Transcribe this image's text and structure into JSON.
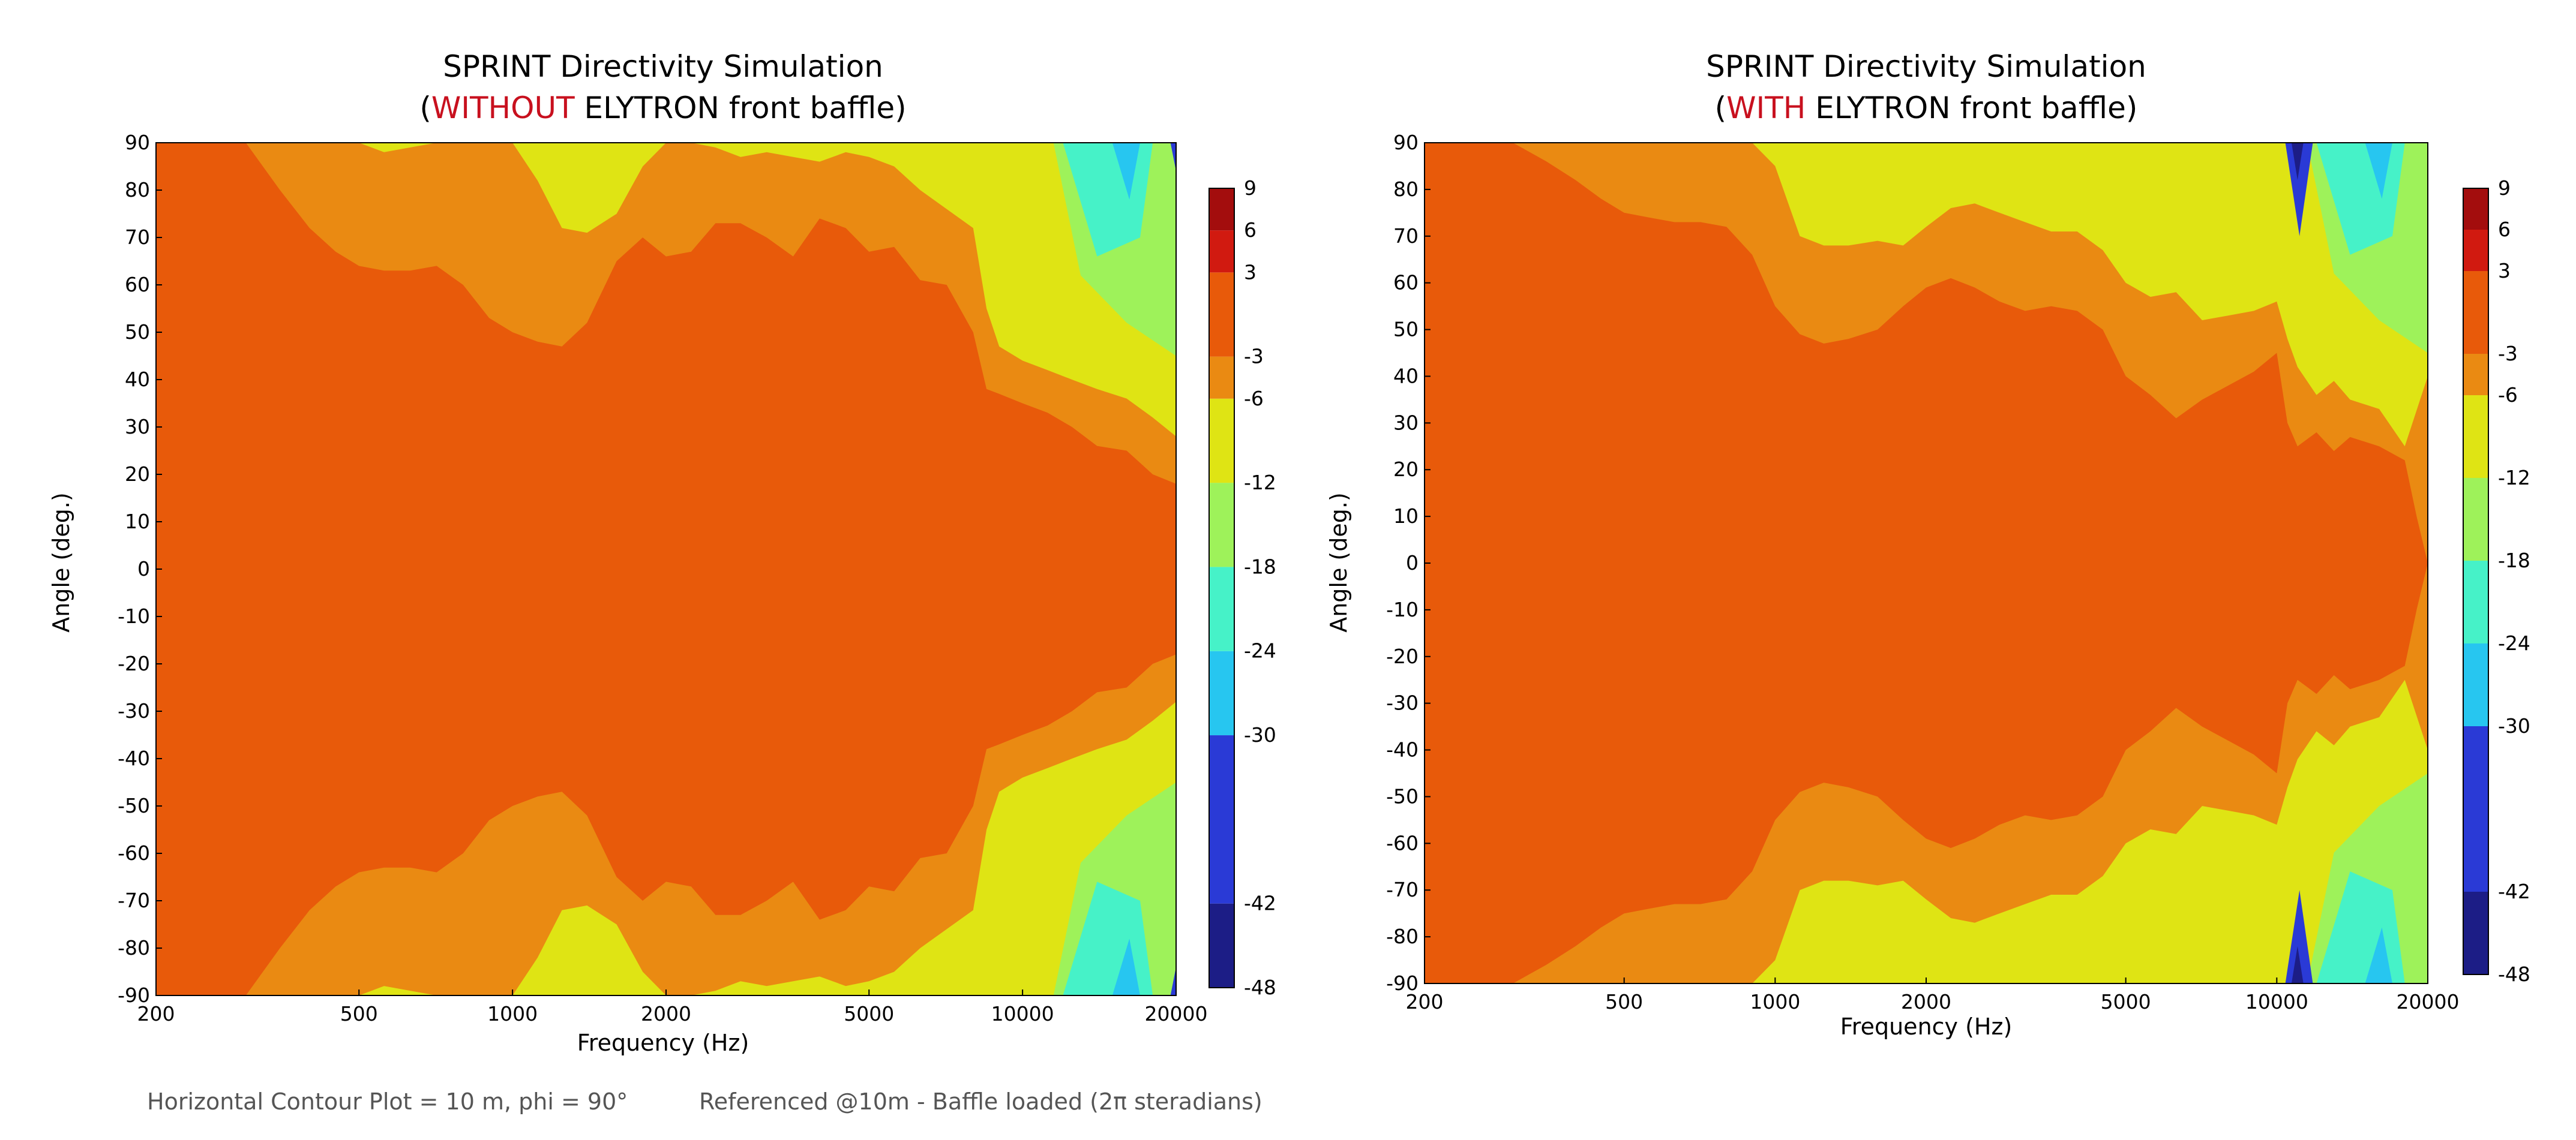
{
  "footer": {
    "left": "Horizontal Contour Plot = 10 m, phi = 90°",
    "right": "Referenced @10m - Baffle loaded (2π steradians)"
  },
  "colors": {
    "dark_red": "#a30d0d",
    "red": "#d11a10",
    "orange": "#e85a0a",
    "light_orange": "#ea8a12",
    "yellow": "#dfe414",
    "light_green": "#9ef25a",
    "aqua": "#46f2c8",
    "light_blue": "#27c6f0",
    "blue": "#2a3ad6",
    "navy": "#1c1d86"
  },
  "chart_data": [
    {
      "type": "heatmap",
      "title_line1": "SPRINT Directivity Simulation",
      "title_line2": {
        "open": "(",
        "highlight": "WITHOUT",
        "rest": " ELYTRON front baffle)"
      },
      "xlabel": "Frequency (Hz)",
      "ylabel": "Angle (deg.)",
      "xscale": "log",
      "xlim": [
        200,
        20000
      ],
      "ylim": [
        -90,
        90
      ],
      "xticks": [
        "200",
        "500",
        "1000",
        "2000",
        "5000",
        "10000",
        "20000"
      ],
      "xtick_values": [
        200,
        500,
        1000,
        2000,
        5000,
        10000,
        20000
      ],
      "yticks": [
        "90",
        "80",
        "70",
        "60",
        "50",
        "40",
        "30",
        "20",
        "10",
        "0",
        "-10",
        "-20",
        "-30",
        "-40",
        "-50",
        "-60",
        "-70",
        "-80",
        "-90"
      ],
      "ytick_values": [
        90,
        80,
        70,
        60,
        50,
        40,
        30,
        20,
        10,
        0,
        -10,
        -20,
        -30,
        -40,
        -50,
        -60,
        -70,
        -80,
        -90
      ],
      "colorbar_levels": [
        -48,
        -42,
        -30,
        -24,
        -18,
        -12,
        -6,
        -3,
        3,
        6,
        9
      ],
      "colorbar_labels": [
        "9",
        "6",
        "3",
        "-3",
        "-6",
        "-12",
        "-18",
        "-24",
        "-30",
        "-42",
        "-48"
      ],
      "contours": [
        {
          "level": "-3 dB",
          "freq": [
            200,
            250,
            300,
            350,
            400,
            450,
            500,
            560,
            630,
            710,
            800,
            900,
            1000,
            1120,
            1250,
            1400,
            1600,
            1800,
            2000,
            2240,
            2500,
            2800,
            3150,
            3550,
            4000,
            4500,
            5000,
            5600,
            6300,
            7100,
            8000,
            8500,
            9000,
            10000,
            11200,
            12500,
            14000,
            16000,
            18000,
            20000
          ],
          "angle": [
            90,
            90,
            90,
            80,
            72,
            67,
            64,
            63,
            63,
            64,
            60,
            53,
            50,
            48,
            47,
            52,
            65,
            70,
            66,
            67,
            73,
            73,
            70,
            66,
            74,
            72,
            67,
            68,
            61,
            60,
            50,
            38,
            37,
            35,
            33,
            30,
            26,
            25,
            20,
            18
          ]
        },
        {
          "level": "-6 dB",
          "freq": [
            200,
            400,
            450,
            500,
            560,
            630,
            710,
            800,
            900,
            1000,
            1120,
            1250,
            1400,
            1600,
            1800,
            2000,
            2240,
            2500,
            2800,
            3150,
            3550,
            4000,
            4500,
            5000,
            5600,
            6300,
            7100,
            8000,
            8500,
            9000,
            10000,
            11200,
            12500,
            14000,
            16000,
            18000,
            20000
          ],
          "angle": [
            90,
            90,
            90,
            90,
            88,
            89,
            90,
            90,
            90,
            90,
            82,
            72,
            71,
            75,
            85,
            90,
            90,
            89,
            87,
            88,
            87,
            86,
            88,
            87,
            85,
            80,
            76,
            72,
            55,
            47,
            44,
            42,
            40,
            38,
            36,
            32,
            28
          ]
        }
      ]
    },
    {
      "type": "heatmap",
      "title_line1": "SPRINT Directivity Simulation",
      "title_line2": {
        "open": "(",
        "highlight": "WITH",
        "rest": " ELYTRON front baffle)"
      },
      "xlabel": "Frequency (Hz)",
      "ylabel": "Angle (deg.)",
      "xscale": "log",
      "xlim": [
        200,
        20000
      ],
      "ylim": [
        -90,
        90
      ],
      "xticks": [
        "200",
        "500",
        "1000",
        "2000",
        "5000",
        "10000",
        "20000"
      ],
      "xtick_values": [
        200,
        500,
        1000,
        2000,
        5000,
        10000,
        20000
      ],
      "yticks": [
        "90",
        "80",
        "70",
        "60",
        "50",
        "40",
        "30",
        "20",
        "10",
        "0",
        "-10",
        "-20",
        "-30",
        "-40",
        "-50",
        "-60",
        "-70",
        "-80",
        "-90"
      ],
      "ytick_values": [
        90,
        80,
        70,
        60,
        50,
        40,
        30,
        20,
        10,
        0,
        -10,
        -20,
        -30,
        -40,
        -50,
        -60,
        -70,
        -80,
        -90
      ],
      "colorbar_levels": [
        -48,
        -42,
        -30,
        -24,
        -18,
        -12,
        -6,
        -3,
        3,
        6,
        9
      ],
      "colorbar_labels": [
        "9",
        "6",
        "3",
        "-3",
        "-6",
        "-12",
        "-18",
        "-24",
        "-30",
        "-42",
        "-48"
      ],
      "contours": [
        {
          "level": "-3 dB",
          "freq": [
            200,
            300,
            350,
            400,
            450,
            500,
            560,
            630,
            710,
            800,
            900,
            1000,
            1120,
            1250,
            1400,
            1600,
            1800,
            2000,
            2240,
            2500,
            2800,
            3150,
            3550,
            4000,
            4500,
            5000,
            5600,
            6300,
            7100,
            8000,
            9000,
            10000,
            10500,
            11000,
            12000,
            13000,
            14000,
            16000,
            18000,
            19000,
            20000
          ],
          "angle": [
            90,
            90,
            86,
            82,
            78,
            75,
            74,
            73,
            73,
            72,
            66,
            55,
            49,
            47,
            48,
            50,
            55,
            59,
            61,
            59,
            56,
            54,
            55,
            54,
            50,
            40,
            36,
            31,
            35,
            38,
            41,
            45,
            30,
            25,
            28,
            24,
            27,
            25,
            22,
            10,
            0
          ]
        },
        {
          "level": "-6 dB",
          "freq": [
            200,
            800,
            900,
            1000,
            1120,
            1250,
            1400,
            1600,
            1800,
            2000,
            2240,
            2500,
            2800,
            3150,
            3550,
            4000,
            4500,
            5000,
            5600,
            6300,
            7100,
            8000,
            9000,
            10000,
            10500,
            11000,
            12000,
            13000,
            14000,
            16000,
            18000,
            20000
          ],
          "angle": [
            90,
            90,
            90,
            85,
            70,
            68,
            68,
            69,
            68,
            72,
            76,
            77,
            75,
            73,
            71,
            71,
            67,
            60,
            57,
            58,
            52,
            53,
            54,
            56,
            48,
            42,
            36,
            39,
            35,
            33,
            25,
            40
          ]
        }
      ]
    }
  ]
}
